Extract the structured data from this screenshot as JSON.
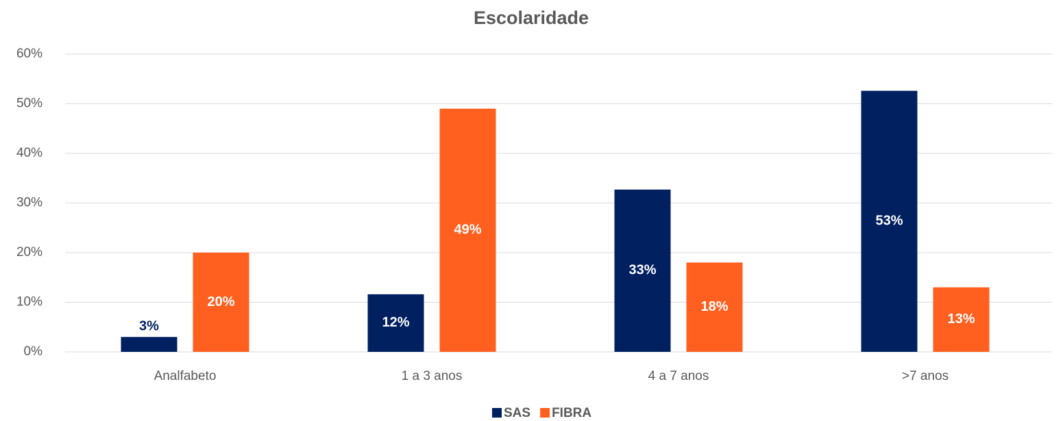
{
  "chart_data": {
    "type": "bar",
    "title": "Escolaridade",
    "categories": [
      "Analfabeto",
      "1 a 3 anos",
      "4 a 7 anos",
      ">7 anos"
    ],
    "series": [
      {
        "name": "SAS",
        "color": "#002060",
        "values": [
          3,
          11.6,
          32.7,
          52.6
        ],
        "value_labels": [
          "3%",
          "12%",
          "33%",
          "53%"
        ]
      },
      {
        "name": "FIBRA",
        "color": "#ff5f1f",
        "values": [
          20,
          49,
          18,
          13
        ],
        "value_labels": [
          "20%",
          "49%",
          "18%",
          "13%"
        ]
      }
    ],
    "ylim": [
      0,
      60
    ],
    "yticks": [
      {
        "value": 0,
        "label": "0%"
      },
      {
        "value": 10,
        "label": "10%"
      },
      {
        "value": 20,
        "label": "20%"
      },
      {
        "value": 30,
        "label": "30%"
      },
      {
        "value": 40,
        "label": "40%"
      },
      {
        "value": 50,
        "label": "50%"
      },
      {
        "value": 60,
        "label": "60%"
      }
    ],
    "grid": true,
    "legend": "bottom"
  }
}
